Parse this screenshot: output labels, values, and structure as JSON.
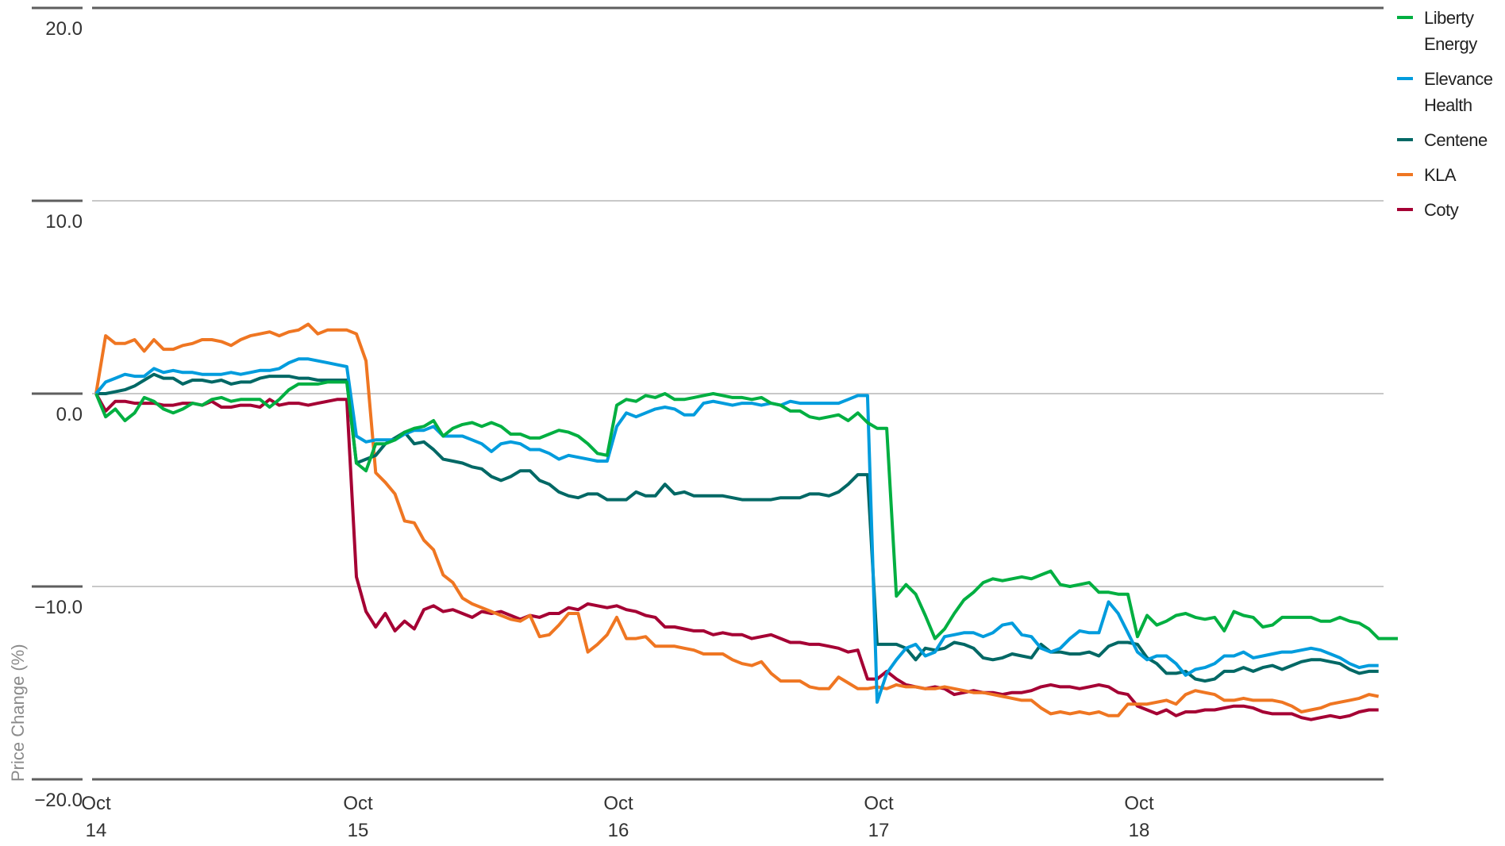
{
  "chart_data": {
    "type": "line",
    "title": "",
    "xlabel": "",
    "ylabel": "Price Change (%)",
    "ylim": [
      -20,
      20
    ],
    "yticks": [
      20.0,
      10.0,
      0.0,
      -10.0,
      -20.0
    ],
    "ytick_labels": [
      "20.0",
      "10.0",
      "0.0",
      "−10.0",
      "−20.0"
    ],
    "xtick_labels": [
      [
        "Oct",
        "14"
      ],
      [
        "Oct",
        "15"
      ],
      [
        "Oct",
        "16"
      ],
      [
        "Oct",
        "17"
      ],
      [
        "Oct",
        "18"
      ]
    ],
    "grid": true,
    "legend_position": "right",
    "points_per_day": 27,
    "series": [
      {
        "name": "Liberty Energy",
        "color": "#00AF41",
        "values": [
          0,
          -1.2,
          -0.8,
          -1.4,
          -1.0,
          -0.2,
          -0.4,
          -0.8,
          -1.0,
          -0.8,
          -0.5,
          -0.6,
          -0.3,
          -0.2,
          -0.4,
          -0.3,
          -0.3,
          -0.3,
          -0.7,
          -0.3,
          0.2,
          0.5,
          0.5,
          0.5,
          0.6,
          0.6,
          0.6,
          -3.6,
          -4.0,
          -2.6,
          -2.6,
          -2.4,
          -2.0,
          -1.8,
          -1.7,
          -1.4,
          -2.2,
          -1.8,
          -1.6,
          -1.5,
          -1.7,
          -1.5,
          -1.7,
          -2.1,
          -2.1,
          -2.3,
          -2.3,
          -2.1,
          -1.9,
          -2.0,
          -2.2,
          -2.6,
          -3.1,
          -3.2,
          -0.6,
          -0.3,
          -0.4,
          -0.1,
          -0.2,
          0.0,
          -0.3,
          -0.3,
          -0.2,
          -0.1,
          0.0,
          -0.1,
          -0.2,
          -0.2,
          -0.3,
          -0.2,
          -0.5,
          -0.6,
          -0.9,
          -0.9,
          -1.2,
          -1.3,
          -1.2,
          -1.1,
          -1.4,
          -1.0,
          -1.5,
          -1.8,
          -1.8,
          -10.5,
          -9.9,
          -10.4,
          -11.5,
          -12.7,
          -12.2,
          -11.4,
          -10.7,
          -10.3,
          -9.8,
          -9.6,
          -9.7,
          -9.6,
          -9.5,
          -9.6,
          -9.4,
          -9.2,
          -9.9,
          -10.0,
          -9.9,
          -9.8,
          -10.3,
          -10.3,
          -10.4,
          -10.4,
          -12.6,
          -11.5,
          -12.0,
          -11.8,
          -11.5,
          -11.4,
          -11.6,
          -11.7,
          -11.6,
          -12.3,
          -11.3,
          -11.5,
          -11.6,
          -12.1,
          -12.0,
          -11.6,
          -11.6,
          -11.6,
          -11.6,
          -11.8,
          -11.8,
          -11.6,
          -11.8,
          -11.9,
          -12.2,
          -12.7,
          -12.7,
          -12.7
        ]
      },
      {
        "name": "Elevance Health",
        "color": "#009CDD",
        "values": [
          0,
          0.6,
          0.8,
          1.0,
          0.9,
          0.9,
          1.3,
          1.1,
          1.2,
          1.1,
          1.1,
          1.0,
          1.0,
          1.0,
          1.1,
          1.0,
          1.1,
          1.2,
          1.2,
          1.3,
          1.6,
          1.8,
          1.8,
          1.7,
          1.6,
          1.5,
          1.4,
          -2.2,
          -2.5,
          -2.4,
          -2.4,
          -2.4,
          -2.1,
          -1.9,
          -1.9,
          -1.7,
          -2.2,
          -2.2,
          -2.2,
          -2.4,
          -2.6,
          -3.0,
          -2.6,
          -2.5,
          -2.6,
          -2.9,
          -2.9,
          -3.1,
          -3.4,
          -3.2,
          -3.3,
          -3.4,
          -3.5,
          -3.5,
          -1.7,
          -1.0,
          -1.2,
          -1.0,
          -0.8,
          -0.7,
          -0.8,
          -1.1,
          -1.1,
          -0.5,
          -0.4,
          -0.5,
          -0.6,
          -0.5,
          -0.5,
          -0.6,
          -0.5,
          -0.6,
          -0.4,
          -0.5,
          -0.5,
          -0.5,
          -0.5,
          -0.5,
          -0.3,
          -0.1,
          -0.1,
          -16.0,
          -14.5,
          -13.8,
          -13.2,
          -13.0,
          -13.6,
          -13.4,
          -12.6,
          -12.5,
          -12.4,
          -12.4,
          -12.6,
          -12.4,
          -12.0,
          -11.9,
          -12.5,
          -12.6,
          -13.2,
          -13.4,
          -13.2,
          -12.7,
          -12.3,
          -12.4,
          -12.4,
          -10.8,
          -11.4,
          -12.4,
          -13.4,
          -13.8,
          -13.6,
          -13.6,
          -14.0,
          -14.6,
          -14.3,
          -14.2,
          -14.0,
          -13.6,
          -13.6,
          -13.4,
          -13.7,
          -13.6,
          -13.5,
          -13.4,
          -13.4,
          -13.3,
          -13.2,
          -13.3,
          -13.5,
          -13.7,
          -14.0,
          -14.2,
          -14.1,
          -14.1
        ]
      },
      {
        "name": "Centene",
        "color": "#006865",
        "values": [
          0,
          0.0,
          0.1,
          0.2,
          0.4,
          0.7,
          1.0,
          0.8,
          0.8,
          0.5,
          0.7,
          0.7,
          0.6,
          0.7,
          0.5,
          0.6,
          0.6,
          0.8,
          0.9,
          0.9,
          0.9,
          0.8,
          0.8,
          0.7,
          0.7,
          0.7,
          0.7,
          -3.6,
          -3.4,
          -3.2,
          -2.6,
          -2.3,
          -2.0,
          -2.6,
          -2.5,
          -2.9,
          -3.4,
          -3.5,
          -3.6,
          -3.8,
          -3.9,
          -4.3,
          -4.5,
          -4.3,
          -4.0,
          -4.0,
          -4.5,
          -4.7,
          -5.1,
          -5.3,
          -5.4,
          -5.2,
          -5.2,
          -5.5,
          -5.5,
          -5.5,
          -5.1,
          -5.3,
          -5.3,
          -4.7,
          -5.2,
          -5.1,
          -5.3,
          -5.3,
          -5.3,
          -5.3,
          -5.4,
          -5.5,
          -5.5,
          -5.5,
          -5.5,
          -5.4,
          -5.4,
          -5.4,
          -5.2,
          -5.2,
          -5.3,
          -5.1,
          -4.7,
          -4.2,
          -4.2,
          -13.0,
          -13.0,
          -13.0,
          -13.2,
          -13.8,
          -13.2,
          -13.3,
          -13.2,
          -12.9,
          -13.0,
          -13.2,
          -13.7,
          -13.8,
          -13.7,
          -13.5,
          -13.6,
          -13.7,
          -13.0,
          -13.4,
          -13.4,
          -13.5,
          -13.5,
          -13.4,
          -13.6,
          -13.1,
          -12.9,
          -12.9,
          -13.0,
          -13.7,
          -14.0,
          -14.5,
          -14.5,
          -14.4,
          -14.8,
          -14.9,
          -14.8,
          -14.4,
          -14.4,
          -14.2,
          -14.4,
          -14.2,
          -14.1,
          -14.3,
          -14.1,
          -13.9,
          -13.8,
          -13.8,
          -13.9,
          -14.0,
          -14.3,
          -14.5,
          -14.4,
          -14.4
        ]
      },
      {
        "name": "KLA",
        "color": "#EF7622",
        "values": [
          0,
          3.0,
          2.6,
          2.6,
          2.8,
          2.2,
          2.8,
          2.3,
          2.3,
          2.5,
          2.6,
          2.8,
          2.8,
          2.7,
          2.5,
          2.8,
          3.0,
          3.1,
          3.2,
          3.0,
          3.2,
          3.3,
          3.6,
          3.1,
          3.3,
          3.3,
          3.3,
          3.1,
          1.7,
          -4.1,
          -4.6,
          -5.2,
          -6.6,
          -6.7,
          -7.6,
          -8.1,
          -9.4,
          -9.8,
          -10.6,
          -10.9,
          -11.1,
          -11.3,
          -11.5,
          -11.7,
          -11.8,
          -11.5,
          -12.6,
          -12.5,
          -12.0,
          -11.4,
          -11.4,
          -13.4,
          -13.0,
          -12.5,
          -11.6,
          -12.7,
          -12.7,
          -12.6,
          -13.1,
          -13.1,
          -13.1,
          -13.2,
          -13.3,
          -13.5,
          -13.5,
          -13.5,
          -13.8,
          -14.0,
          -14.1,
          -13.9,
          -14.5,
          -14.9,
          -14.9,
          -14.9,
          -15.2,
          -15.3,
          -15.3,
          -14.7,
          -15.0,
          -15.3,
          -15.3,
          -15.2,
          -15.3,
          -15.1,
          -15.2,
          -15.2,
          -15.3,
          -15.3,
          -15.2,
          -15.3,
          -15.4,
          -15.5,
          -15.5,
          -15.6,
          -15.7,
          -15.8,
          -15.9,
          -15.9,
          -16.3,
          -16.6,
          -16.5,
          -16.6,
          -16.5,
          -16.6,
          -16.5,
          -16.7,
          -16.7,
          -16.1,
          -16.1,
          -16.1,
          -16.0,
          -15.9,
          -16.1,
          -15.6,
          -15.4,
          -15.5,
          -15.6,
          -15.9,
          -15.9,
          -15.8,
          -15.9,
          -15.9,
          -15.9,
          -16.0,
          -16.2,
          -16.5,
          -16.4,
          -16.3,
          -16.1,
          -16.0,
          -15.9,
          -15.8,
          -15.6,
          -15.7
        ]
      },
      {
        "name": "Coty",
        "color": "#A50034",
        "values": [
          0,
          -0.9,
          -0.4,
          -0.4,
          -0.5,
          -0.5,
          -0.5,
          -0.6,
          -0.6,
          -0.5,
          -0.5,
          -0.6,
          -0.4,
          -0.7,
          -0.7,
          -0.6,
          -0.6,
          -0.7,
          -0.3,
          -0.6,
          -0.5,
          -0.5,
          -0.6,
          -0.5,
          -0.4,
          -0.3,
          -0.3,
          -9.5,
          -11.3,
          -12.1,
          -11.4,
          -12.3,
          -11.8,
          -12.2,
          -11.2,
          -11.0,
          -11.3,
          -11.2,
          -11.4,
          -11.6,
          -11.3,
          -11.4,
          -11.3,
          -11.5,
          -11.7,
          -11.5,
          -11.6,
          -11.4,
          -11.4,
          -11.1,
          -11.2,
          -10.9,
          -11.0,
          -11.1,
          -11.0,
          -11.2,
          -11.3,
          -11.5,
          -11.6,
          -12.1,
          -12.1,
          -12.2,
          -12.3,
          -12.3,
          -12.5,
          -12.4,
          -12.5,
          -12.5,
          -12.7,
          -12.6,
          -12.5,
          -12.7,
          -12.9,
          -12.9,
          -13.0,
          -13.0,
          -13.1,
          -13.2,
          -13.4,
          -13.3,
          -14.8,
          -14.8,
          -14.4,
          -14.8,
          -15.1,
          -15.2,
          -15.3,
          -15.2,
          -15.3,
          -15.6,
          -15.5,
          -15.4,
          -15.5,
          -15.5,
          -15.6,
          -15.5,
          -15.5,
          -15.4,
          -15.2,
          -15.1,
          -15.2,
          -15.2,
          -15.3,
          -15.2,
          -15.1,
          -15.2,
          -15.5,
          -15.6,
          -16.2,
          -16.4,
          -16.6,
          -16.4,
          -16.7,
          -16.5,
          -16.5,
          -16.4,
          -16.4,
          -16.3,
          -16.2,
          -16.2,
          -16.3,
          -16.5,
          -16.6,
          -16.6,
          -16.6,
          -16.8,
          -16.9,
          -16.8,
          -16.7,
          -16.8,
          -16.7,
          -16.5,
          -16.4,
          -16.4
        ]
      }
    ]
  },
  "legend": {
    "items": [
      {
        "label": "Liberty Energy",
        "color": "#00AF41"
      },
      {
        "label": "Elevance Health",
        "color": "#009CDD"
      },
      {
        "label": "Centene",
        "color": "#006865"
      },
      {
        "label": "KLA",
        "color": "#EF7622"
      },
      {
        "label": "Coty",
        "color": "#A50034"
      }
    ]
  }
}
